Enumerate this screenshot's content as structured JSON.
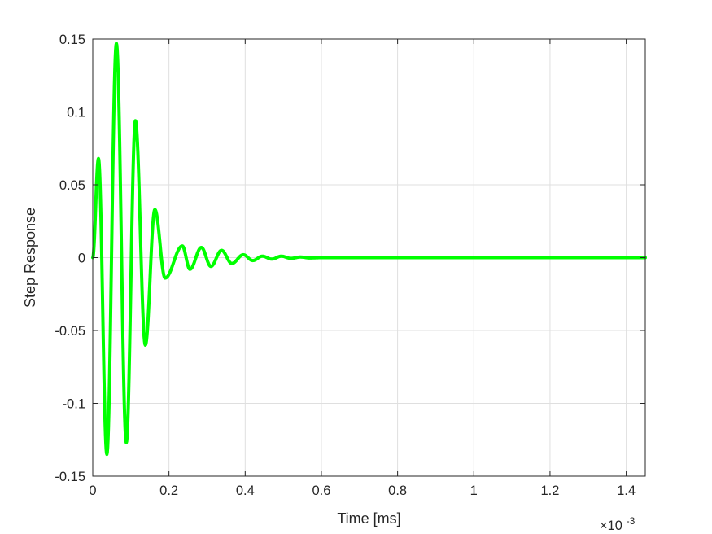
{
  "chart_data": {
    "type": "line",
    "title": "",
    "xlabel": "Time [ms]",
    "ylabel": "Step Response",
    "x_multiplier_label": "×10",
    "x_multiplier_exponent": "-3",
    "xlim": [
      0,
      1.45
    ],
    "ylim": [
      -0.15,
      0.15
    ],
    "x_ticks": [
      0,
      0.2,
      0.4,
      0.6,
      0.8,
      1,
      1.2,
      1.4
    ],
    "x_tick_labels": [
      "0",
      "0.2",
      "0.4",
      "0.6",
      "0.8",
      "1",
      "1.2",
      "1.4"
    ],
    "y_ticks": [
      0.15,
      0.1,
      0.05,
      0,
      -0.05,
      -0.1,
      -0.15
    ],
    "y_tick_labels": [
      "0.15",
      "0.1",
      "0.05",
      "0",
      "-0.05",
      "-0.1",
      "-0.15"
    ],
    "grid": true,
    "legend": "none",
    "series": [
      {
        "color": "#00ff00",
        "x": [
          0,
          0.015,
          0.037,
          0.062,
          0.088,
          0.112,
          0.138,
          0.163,
          0.19,
          0.235,
          0.255,
          0.285,
          0.31,
          0.338,
          0.365,
          0.395,
          0.42,
          0.445,
          0.47,
          0.495,
          0.52,
          0.545,
          0.57,
          0.6,
          0.7,
          0.9,
          1.1,
          1.3,
          1.45
        ],
        "y": [
          0.0,
          0.068,
          -0.135,
          0.147,
          -0.127,
          0.094,
          -0.06,
          0.033,
          -0.014,
          0.008,
          -0.008,
          0.007,
          -0.006,
          0.005,
          -0.004,
          0.002,
          -0.002,
          0.001,
          -0.001,
          0.001,
          -0.0005,
          0.0004,
          -0.0002,
          0.0,
          0.0,
          0.0,
          0.0,
          0.0,
          0.0
        ]
      }
    ]
  }
}
